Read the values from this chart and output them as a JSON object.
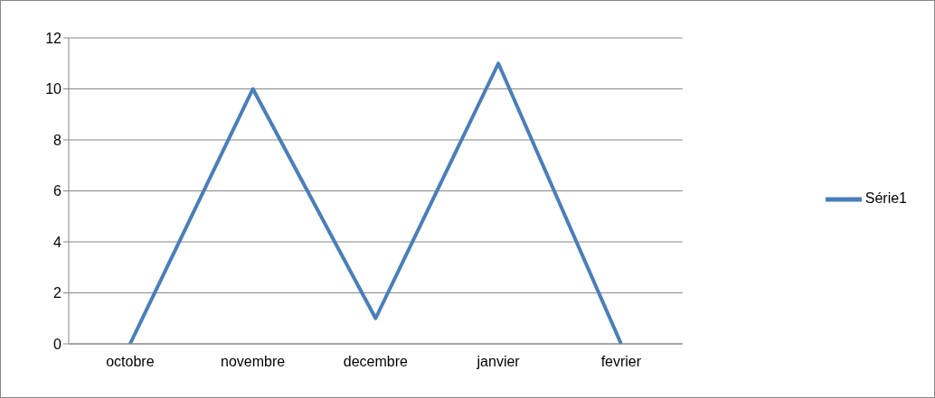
{
  "chart_data": {
    "type": "line",
    "categories": [
      "octobre",
      "novembre",
      "decembre",
      "janvier",
      "fevrier"
    ],
    "series": [
      {
        "name": "Série1",
        "color": "#4a7ebb",
        "values": [
          0,
          10,
          1,
          11,
          0
        ]
      }
    ],
    "ylim": [
      0,
      12
    ],
    "yticks": [
      0,
      2,
      4,
      6,
      8,
      10,
      12
    ],
    "grid": "y",
    "legend": "right",
    "marker": "none",
    "line_style": "solid"
  }
}
